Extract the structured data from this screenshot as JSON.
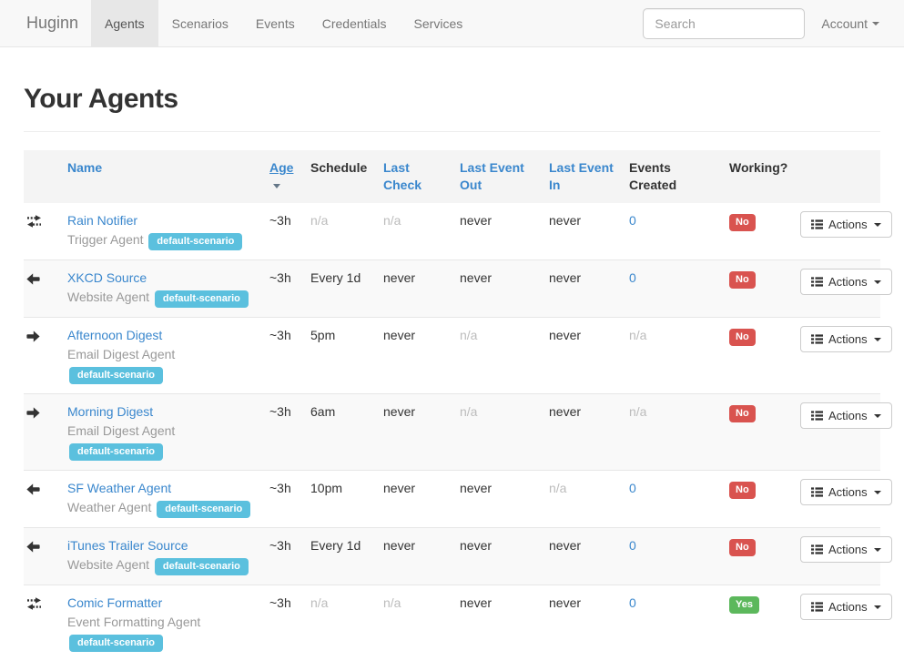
{
  "navbar": {
    "brand": "Huginn",
    "items": [
      {
        "label": "Agents",
        "active": true
      },
      {
        "label": "Scenarios",
        "active": false
      },
      {
        "label": "Events",
        "active": false
      },
      {
        "label": "Credentials",
        "active": false
      },
      {
        "label": "Services",
        "active": false
      }
    ],
    "search_placeholder": "Search",
    "account_label": "Account"
  },
  "page": {
    "title": "Your Agents"
  },
  "table": {
    "headers": [
      {
        "label": "",
        "link": false
      },
      {
        "label": "Name",
        "link": true
      },
      {
        "label": "Age",
        "link": true,
        "sorted": "desc"
      },
      {
        "label": "Schedule",
        "link": false
      },
      {
        "label": "Last Check",
        "link": true
      },
      {
        "label": "Last Event Out",
        "link": true
      },
      {
        "label": "Last Event In",
        "link": true
      },
      {
        "label": "Events Created",
        "link": false
      },
      {
        "label": "Working?",
        "link": false
      },
      {
        "label": "",
        "link": false
      }
    ],
    "actions_label": "Actions",
    "rows": [
      {
        "icon": "transfer-icon",
        "name": "Rain Notifier",
        "type": "Trigger Agent",
        "scenarios": [
          "default-scenario"
        ],
        "age": "~3h",
        "schedule": "n/a",
        "last_check": "n/a",
        "last_event_out": "never",
        "last_event_in": "never",
        "events_created": "0",
        "working": "No"
      },
      {
        "icon": "arrow-left-icon",
        "name": "XKCD Source",
        "type": "Website Agent",
        "scenarios": [
          "default-scenario"
        ],
        "age": "~3h",
        "schedule": "Every 1d",
        "last_check": "never",
        "last_event_out": "never",
        "last_event_in": "never",
        "events_created": "0",
        "working": "No"
      },
      {
        "icon": "arrow-right-icon",
        "name": "Afternoon Digest",
        "type": "Email Digest Agent",
        "scenarios": [
          "default-scenario"
        ],
        "age": "~3h",
        "schedule": "5pm",
        "last_check": "never",
        "last_event_out": "n/a",
        "last_event_in": "never",
        "events_created": "n/a",
        "working": "No"
      },
      {
        "icon": "arrow-right-icon",
        "name": "Morning Digest",
        "type": "Email Digest Agent",
        "scenarios": [
          "default-scenario"
        ],
        "age": "~3h",
        "schedule": "6am",
        "last_check": "never",
        "last_event_out": "n/a",
        "last_event_in": "never",
        "events_created": "n/a",
        "working": "No"
      },
      {
        "icon": "arrow-left-icon",
        "name": "SF Weather Agent",
        "type": "Weather Agent",
        "scenarios": [
          "default-scenario"
        ],
        "age": "~3h",
        "schedule": "10pm",
        "last_check": "never",
        "last_event_out": "never",
        "last_event_in": "n/a",
        "events_created": "0",
        "working": "No"
      },
      {
        "icon": "arrow-left-icon",
        "name": "iTunes Trailer Source",
        "type": "Website Agent",
        "scenarios": [
          "default-scenario"
        ],
        "age": "~3h",
        "schedule": "Every 1d",
        "last_check": "never",
        "last_event_out": "never",
        "last_event_in": "never",
        "events_created": "0",
        "working": "No"
      },
      {
        "icon": "transfer-icon",
        "name": "Comic Formatter",
        "type": "Event Formatting Agent",
        "scenarios": [
          "default-scenario"
        ],
        "age": "~3h",
        "schedule": "n/a",
        "last_check": "n/a",
        "last_event_out": "never",
        "last_event_in": "never",
        "events_created": "0",
        "working": "Yes"
      }
    ]
  },
  "colors": {
    "link": "#3a87cd",
    "badge_info": "#5bc0de",
    "label_danger": "#d9534f",
    "label_success": "#5cb85c",
    "navbar_bg": "#f8f8f8",
    "navbar_active_bg": "#e7e7e7",
    "thead_bg": "#f4f4f4",
    "stripe_bg": "#f9f9f9"
  }
}
